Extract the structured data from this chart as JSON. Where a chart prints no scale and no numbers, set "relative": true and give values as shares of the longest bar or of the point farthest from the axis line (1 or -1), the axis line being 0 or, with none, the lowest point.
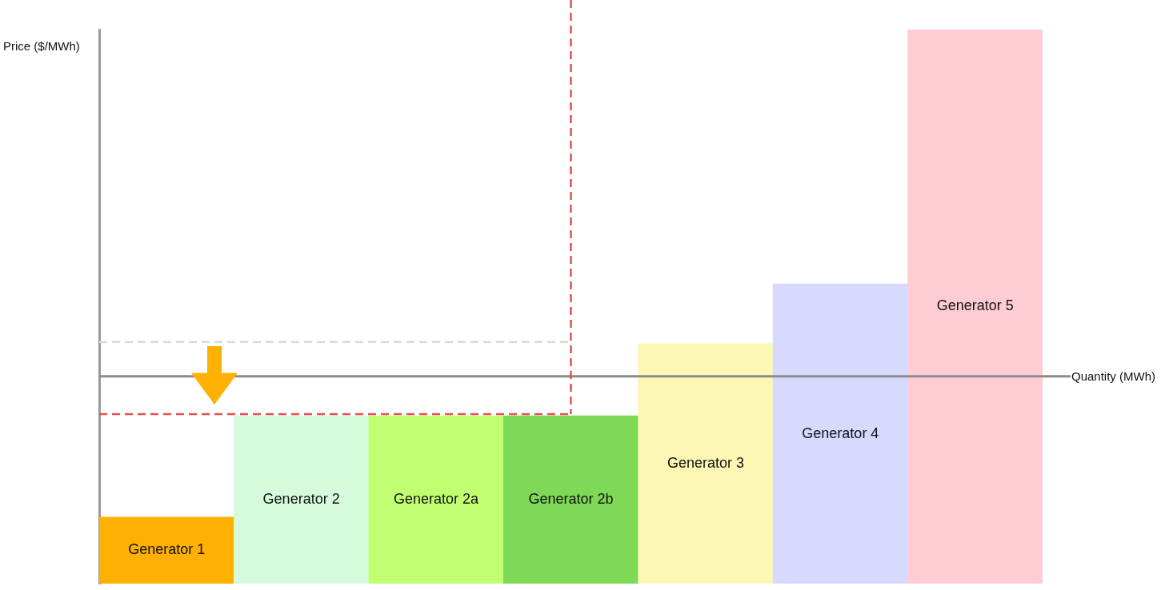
{
  "chart_data": {
    "type": "bar",
    "ylabel": "Price ($/MWh)",
    "relative": true,
    "categories": [
      "Generator 1",
      "Generator 2",
      "Generator 2a",
      "Generator 2b",
      "Generator 3",
      "Generator 4",
      "Generator 5"
    ],
    "values": [
      0.12,
      0.303,
      0.303,
      0.303,
      0.433,
      0.541,
      1
    ],
    "colors": [
      "#ffb000",
      "#d5fbdc",
      "#c1ff70",
      "#7ed957",
      "#fcf8b4",
      "#d7d9ff",
      "#ffccd3"
    ],
    "ref_lines": [
      {
        "axis": "y",
        "value": 0.374,
        "label": "Quantity (MWh)",
        "color": "#8c8c8c",
        "line_style": "solid"
      },
      {
        "axis": "y",
        "value": 0.436,
        "color": "#d3d9e3",
        "line_style": "dashed"
      },
      {
        "axis": "y",
        "value": 0.306,
        "color": "#e25050",
        "line_style": "dashed"
      },
      {
        "axis": "x",
        "value": "Generator 2b",
        "color": "#e25050",
        "line_style": "dashed"
      }
    ]
  }
}
